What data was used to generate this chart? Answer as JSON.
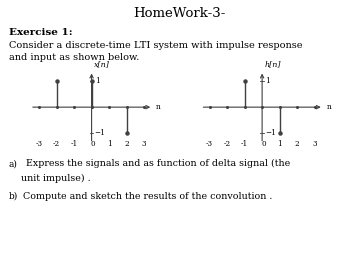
{
  "title": "HomeWork-3-",
  "title_fontsize": 9.5,
  "exercise_label": "Exercise 1:",
  "description_line1": "Consider a discrete-time LTI system with impulse response",
  "description_line2": "and input as shown below.",
  "graph1_label": "x[n]",
  "graph1_n": [
    -3,
    -2,
    -1,
    0,
    1,
    2,
    3
  ],
  "graph1_values": [
    0,
    1,
    0,
    1,
    0,
    -1,
    0
  ],
  "graph2_label": "h[n]",
  "graph2_n": [
    -3,
    -2,
    -1,
    0,
    1,
    2,
    3
  ],
  "graph2_values": [
    0,
    0,
    1,
    0,
    -1,
    0,
    0
  ],
  "question_a_super": "a)",
  "question_a_text": " Express the signals and as function of delta signal (the",
  "question_a_line2": "    unit impulse) .",
  "question_b_super": "b)",
  "question_b_text": "Compute and sketch the results of the convolution .",
  "stem_color": "#404040",
  "dot_color": "#404040",
  "axis_color": "#404040",
  "bg_color": "#ffffff",
  "text_color": "#000000",
  "xlim": [
    -3.7,
    3.7
  ],
  "ylim_graph": [
    -1.6,
    1.6
  ]
}
